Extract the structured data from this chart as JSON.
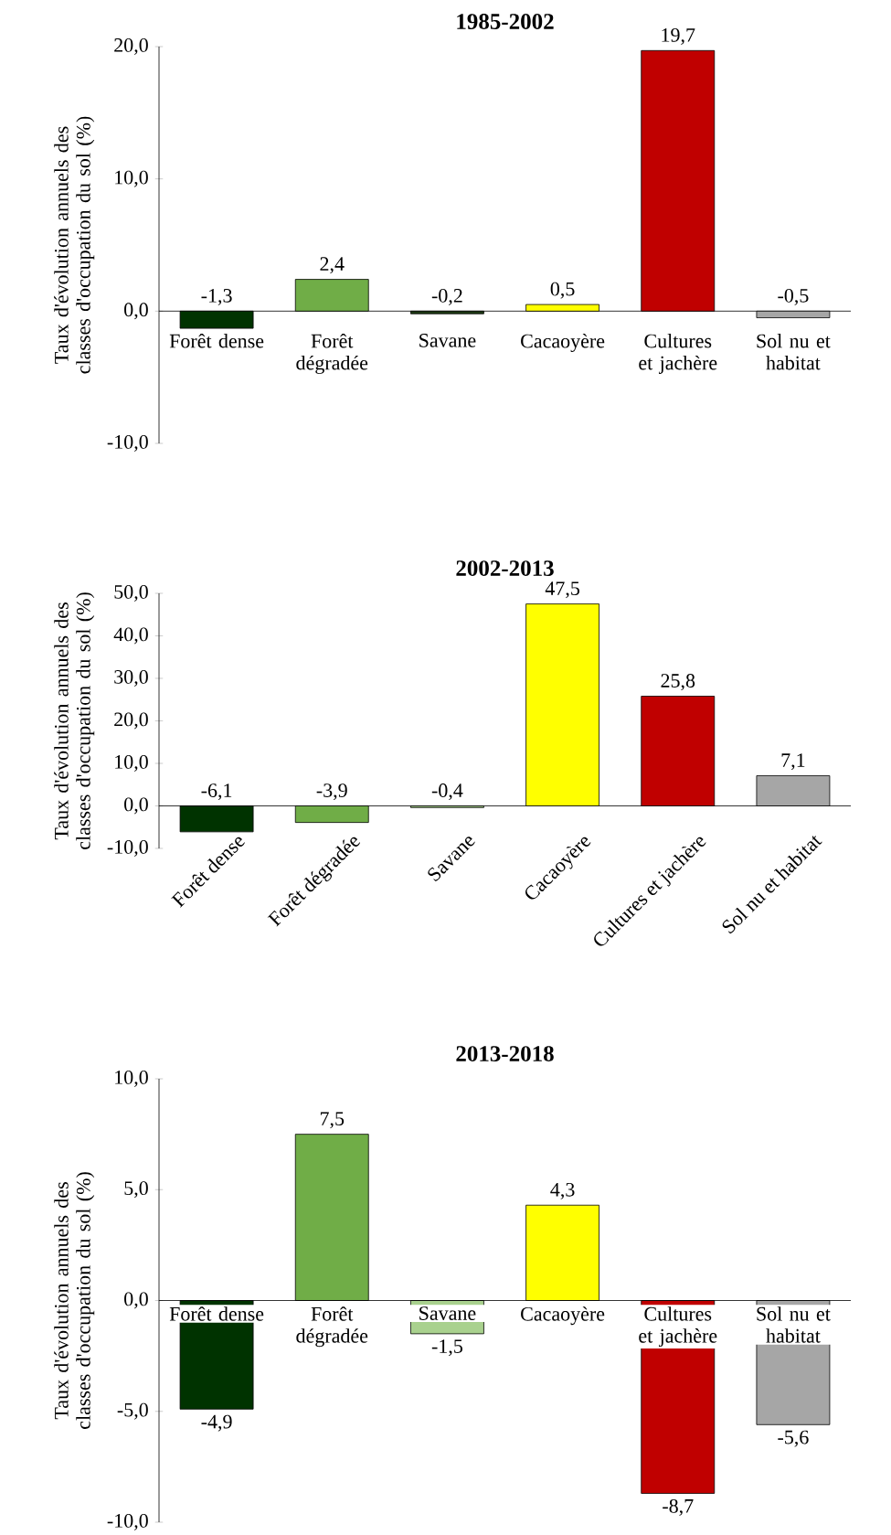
{
  "chart_data": [
    {
      "type": "bar",
      "title": "1985-2002",
      "ylabel": "Taux d'évolution annuels des classes d'occupation du sol (%)",
      "categories": [
        "Forêt dense",
        "Forêt dégradée",
        "Savane",
        "Cacaoyère",
        "Cultures et jachère",
        "Sol nu et habitat"
      ],
      "values": [
        -1.3,
        2.4,
        -0.2,
        0.5,
        19.7,
        -0.5
      ],
      "value_labels": [
        "-1,3",
        "2,4",
        "-0,2",
        "0,5",
        "19,7",
        "-0,5"
      ],
      "colors": [
        "#003300",
        "#70ad47",
        "#1e3a14",
        "#ffff00",
        "#c00000",
        "#a6a6a6"
      ],
      "ylim": [
        -10,
        20
      ],
      "yticks": [
        {
          "value": -10,
          "label": "-10,0"
        },
        {
          "value": 0,
          "label": "0,0"
        },
        {
          "value": 10,
          "label": "10,0"
        },
        {
          "value": 20,
          "label": "20,0"
        }
      ]
    },
    {
      "type": "bar",
      "title": "2002-2013",
      "ylabel": "Taux d'évolution annuels des classes d'occupation du sol (%)",
      "categories": [
        "Forêt dense",
        "Forêt dégradée",
        "Savane",
        "Cacaoyère",
        "Cultures et jachère",
        "Sol nu et habitat"
      ],
      "values": [
        -6.1,
        -3.9,
        -0.4,
        47.5,
        25.8,
        7.1
      ],
      "value_labels": [
        "-6,1",
        "-3,9",
        "-0,4",
        "47,5",
        "25,8",
        "7,1"
      ],
      "colors": [
        "#003300",
        "#70ad47",
        "#a9d18e",
        "#ffff00",
        "#c00000",
        "#a6a6a6"
      ],
      "ylim": [
        -10,
        50
      ],
      "yticks": [
        {
          "value": -10,
          "label": "-10,0"
        },
        {
          "value": 0,
          "label": "0,0"
        },
        {
          "value": 10,
          "label": "10,0"
        },
        {
          "value": 20,
          "label": "20,0"
        },
        {
          "value": 30,
          "label": "30,0"
        },
        {
          "value": 40,
          "label": "40,0"
        },
        {
          "value": 50,
          "label": "50,0"
        }
      ]
    },
    {
      "type": "bar",
      "title": "2013-2018",
      "ylabel": "Taux d'évolution annuels des classes d'occupation du sol (%)",
      "categories": [
        "Forêt dense",
        "Forêt dégradée",
        "Savane",
        "Cacaoyère",
        "Cultures et jachère",
        "Sol nu et habitat"
      ],
      "values": [
        -4.9,
        7.5,
        -1.5,
        4.3,
        -8.7,
        -5.6
      ],
      "value_labels": [
        "-4,9",
        "7,5",
        "-1,5",
        "4,3",
        "-8,7",
        "-5,6"
      ],
      "colors": [
        "#003300",
        "#70ad47",
        "#a9d18e",
        "#ffff00",
        "#c00000",
        "#a6a6a6"
      ],
      "ylim": [
        -10,
        10
      ],
      "yticks": [
        {
          "value": -10,
          "label": "-10,0"
        },
        {
          "value": -5,
          "label": "-5,0"
        },
        {
          "value": 0,
          "label": "0,0"
        },
        {
          "value": 5,
          "label": "5,0"
        },
        {
          "value": 10,
          "label": "10,0"
        }
      ]
    }
  ]
}
